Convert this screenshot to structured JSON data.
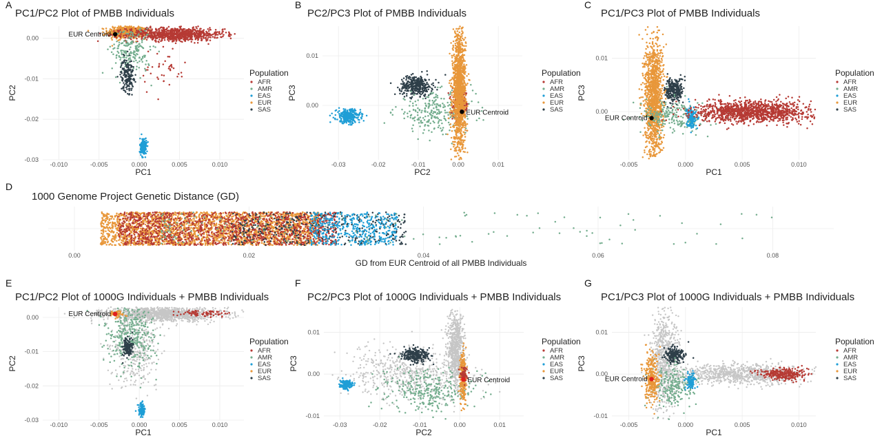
{
  "colors": {
    "AFR": "#b63a34",
    "AMR": "#74ad8e",
    "EAS": "#1f9ed6",
    "EUR": "#e8973a",
    "SAS": "#2e3f49",
    "ref": "#c6c6c6",
    "centroid_black": "#000000",
    "centroid_red": "#e02020",
    "grid": "#ececec"
  },
  "chart_data": [
    {
      "id": "A",
      "letter": "A",
      "type": "scatter",
      "title": "PC1/PC2 Plot of PMBB Individuals",
      "xlabel": "PC1",
      "ylabel": "PC2",
      "xlim": [
        -0.012,
        0.013
      ],
      "ylim": [
        -0.03,
        0.003
      ],
      "xticks": [
        -0.01,
        -0.005,
        0.0,
        0.005,
        0.01
      ],
      "xtick_labels": [
        "-0.010",
        "-0.005",
        "0.000",
        "0.005",
        "0.010"
      ],
      "yticks": [
        0.0,
        -0.01,
        -0.02,
        -0.03
      ],
      "ytick_labels": [
        "0.00",
        "-0.01",
        "-0.02",
        "-0.03"
      ],
      "legend_title": "Population",
      "legend": [
        "AFR",
        "AMR",
        "EAS",
        "EUR",
        "SAS"
      ],
      "legend_placement": "right",
      "centroid": {
        "label": "EUR Centroid",
        "x": -0.003,
        "y": 0.001,
        "color": "centroid_black"
      },
      "series": [
        {
          "group": "EUR",
          "clusters": [
            {
              "cx": -0.0015,
              "cy": 0.0015,
              "sx": 0.0012,
              "sy": 0.0008,
              "n": 500
            }
          ]
        },
        {
          "group": "AFR",
          "clusters": [
            {
              "cx": 0.0045,
              "cy": 0.001,
              "sx": 0.003,
              "sy": 0.0008,
              "n": 900
            },
            {
              "cx": 0.003,
              "cy": -0.008,
              "sx": 0.0015,
              "sy": 0.003,
              "n": 40
            }
          ]
        },
        {
          "group": "AMR",
          "clusters": [
            {
              "cx": -0.001,
              "cy": -0.003,
              "sx": 0.0012,
              "sy": 0.003,
              "n": 200
            }
          ]
        },
        {
          "group": "SAS",
          "clusters": [
            {
              "cx": -0.0015,
              "cy": -0.009,
              "sx": 0.0004,
              "sy": 0.002,
              "n": 180
            }
          ]
        },
        {
          "group": "EAS",
          "clusters": [
            {
              "cx": 0.0005,
              "cy": -0.027,
              "sx": 0.0002,
              "sy": 0.0012,
              "n": 180
            }
          ]
        }
      ]
    },
    {
      "id": "B",
      "letter": "B",
      "type": "scatter",
      "title": "PC2/PC3 Plot of PMBB Individuals",
      "xlabel": "PC2",
      "ylabel": "PC3",
      "xlim": [
        -0.034,
        0.016
      ],
      "ylim": [
        -0.011,
        0.016
      ],
      "xticks": [
        -0.03,
        -0.02,
        -0.01,
        0.0,
        0.01
      ],
      "xtick_labels": [
        "-0.03",
        "-0.02",
        "-0.01",
        "0.00",
        "0.01"
      ],
      "yticks": [
        0.01,
        0.0
      ],
      "ytick_labels": [
        "0.01",
        "0.00"
      ],
      "legend_title": "Population",
      "legend": [
        "AFR",
        "AMR",
        "EAS",
        "EUR",
        "SAS"
      ],
      "legend_placement": "right",
      "centroid": {
        "label": "EUR Centroid",
        "x": 0.0009,
        "y": -0.0013,
        "color": "centroid_black"
      },
      "series": [
        {
          "group": "SAS",
          "clusters": [
            {
              "cx": -0.0105,
              "cy": 0.004,
              "sx": 0.002,
              "sy": 0.001,
              "n": 350
            }
          ]
        },
        {
          "group": "EAS",
          "clusters": [
            {
              "cx": -0.0275,
              "cy": -0.0022,
              "sx": 0.0015,
              "sy": 0.0007,
              "n": 280
            }
          ]
        },
        {
          "group": "AMR",
          "clusters": [
            {
              "cx": -0.006,
              "cy": -0.0015,
              "sx": 0.005,
              "sy": 0.002,
              "n": 250
            }
          ]
        },
        {
          "group": "AFR",
          "clusters": [
            {
              "cx": 0.0005,
              "cy": 0.0,
              "sx": 0.001,
              "sy": 0.0015,
              "n": 220
            }
          ]
        },
        {
          "group": "EUR",
          "clusters": [
            {
              "cx": 0.0002,
              "cy": 0.003,
              "sx": 0.0008,
              "sy": 0.006,
              "n": 1400
            }
          ]
        }
      ]
    },
    {
      "id": "C",
      "letter": "C",
      "type": "scatter",
      "title": "PC1/PC3 Plot of PMBB Individuals",
      "xlabel": "PC1",
      "ylabel": "PC3",
      "xlim": [
        -0.0065,
        0.0115
      ],
      "ylim": [
        -0.009,
        0.016
      ],
      "xticks": [
        -0.005,
        0.0,
        0.005,
        0.01
      ],
      "xtick_labels": [
        "-0.005",
        "0.000",
        "0.005",
        "0.010"
      ],
      "yticks": [
        0.01,
        0.0
      ],
      "ytick_labels": [
        "0.01",
        "0.00"
      ],
      "legend_title": "Population",
      "legend": [
        "AFR",
        "AMR",
        "EAS",
        "EUR",
        "SAS"
      ],
      "legend_placement": "right",
      "centroid": {
        "label": "EUR Centroid",
        "x": -0.003,
        "y": -0.0012,
        "color": "centroid_black"
      },
      "series": [
        {
          "group": "EUR",
          "clusters": [
            {
              "cx": -0.0028,
              "cy": 0.0025,
              "sx": 0.0004,
              "sy": 0.0055,
              "n": 1300
            }
          ]
        },
        {
          "group": "SAS",
          "clusters": [
            {
              "cx": -0.001,
              "cy": 0.004,
              "sx": 0.0004,
              "sy": 0.0012,
              "n": 260
            }
          ]
        },
        {
          "group": "AMR",
          "clusters": [
            {
              "cx": -0.001,
              "cy": -0.001,
              "sx": 0.0015,
              "sy": 0.0015,
              "n": 220
            }
          ]
        },
        {
          "group": "EAS",
          "clusters": [
            {
              "cx": 0.0005,
              "cy": -0.001,
              "sx": 0.0002,
              "sy": 0.001,
              "n": 150
            }
          ]
        },
        {
          "group": "AFR",
          "clusters": [
            {
              "cx": 0.006,
              "cy": 0.0,
              "sx": 0.0025,
              "sy": 0.001,
              "n": 1200
            }
          ]
        }
      ]
    },
    {
      "id": "D",
      "letter": "D",
      "type": "scatter",
      "title": "1000 Genome Project Genetic Distance (GD)",
      "xlabel": "GD from EUR Centroid of all PMBB Individuals",
      "ylabel": "",
      "xlim": [
        -0.003,
        0.087
      ],
      "xticks": [
        0.0,
        0.02,
        0.04,
        0.06,
        0.08
      ],
      "xtick_labels": [
        "0.00",
        "0.02",
        "0.04",
        "0.06",
        "0.08"
      ],
      "legend": [],
      "series": [
        {
          "group": "EUR",
          "x_range": [
            0.003,
            0.028
          ],
          "n": 2600
        },
        {
          "group": "AFR",
          "x_range": [
            0.005,
            0.03
          ],
          "n": 1300
        },
        {
          "group": "SAS",
          "x_range": [
            0.018,
            0.038
          ],
          "n": 350
        },
        {
          "group": "EAS",
          "x_range": [
            0.027,
            0.037
          ],
          "n": 450
        },
        {
          "group": "AMR",
          "x_range": [
            0.01,
            0.08
          ],
          "n": 140
        }
      ]
    },
    {
      "id": "E",
      "letter": "E",
      "type": "scatter",
      "title": "PC1/PC2 Plot of 1000G Individuals + PMBB Individuals",
      "xlabel": "PC1",
      "ylabel": "PC2",
      "xlim": [
        -0.012,
        0.013
      ],
      "ylim": [
        -0.03,
        0.003
      ],
      "xticks": [
        -0.01,
        -0.005,
        0.0,
        0.005,
        0.01
      ],
      "xtick_labels": [
        "-0.010",
        "-0.005",
        "0.000",
        "0.005",
        "0.010"
      ],
      "yticks": [
        0.0,
        -0.01,
        -0.02,
        -0.03
      ],
      "ytick_labels": [
        "0.00",
        "-0.01",
        "-0.02",
        "-0.03"
      ],
      "legend_title": "Population",
      "legend": [
        "AFR",
        "AMR",
        "EAS",
        "EUR",
        "SAS"
      ],
      "legend_placement": "right",
      "centroid": {
        "label": "EUR Centroid",
        "x": -0.003,
        "y": 0.001,
        "color": "centroid_red"
      },
      "series": [
        {
          "group": "ref",
          "clusters": [
            {
              "cx": 0.003,
              "cy": 0.001,
              "sx": 0.0035,
              "sy": 0.001,
              "n": 1200
            },
            {
              "cx": -0.0005,
              "cy": -0.008,
              "sx": 0.0015,
              "sy": 0.006,
              "n": 400
            }
          ]
        },
        {
          "group": "AFR",
          "clusters": [
            {
              "cx": 0.008,
              "cy": 0.0012,
              "sx": 0.0015,
              "sy": 0.0005,
              "n": 80
            }
          ]
        },
        {
          "group": "AMR",
          "clusters": [
            {
              "cx": -0.001,
              "cy": -0.005,
              "sx": 0.0015,
              "sy": 0.005,
              "n": 350
            }
          ]
        },
        {
          "group": "SAS",
          "clusters": [
            {
              "cx": -0.0015,
              "cy": -0.009,
              "sx": 0.0003,
              "sy": 0.0015,
              "n": 150
            }
          ]
        },
        {
          "group": "EAS",
          "clusters": [
            {
              "cx": 0.0003,
              "cy": -0.027,
              "sx": 0.0002,
              "sy": 0.001,
              "n": 120
            }
          ]
        },
        {
          "group": "EUR",
          "clusters": [
            {
              "cx": -0.0028,
              "cy": 0.001,
              "sx": 0.0004,
              "sy": 0.0004,
              "n": 80
            }
          ]
        }
      ]
    },
    {
      "id": "F",
      "letter": "F",
      "type": "scatter",
      "title": "PC2/PC3 Plot of 1000G Individuals + PMBB Individuals",
      "xlabel": "PC2",
      "ylabel": "PC3",
      "xlim": [
        -0.034,
        0.016
      ],
      "ylim": [
        -0.011,
        0.016
      ],
      "xticks": [
        -0.03,
        -0.02,
        -0.01,
        0.0,
        0.01
      ],
      "xtick_labels": [
        "-0.03",
        "-0.02",
        "-0.01",
        "0.00",
        "0.01"
      ],
      "yticks": [
        0.01,
        0.0,
        -0.01
      ],
      "ytick_labels": [
        "0.01",
        "0.00",
        "-0.01"
      ],
      "legend_title": "Population",
      "legend": [
        "AFR",
        "AMR",
        "EAS",
        "EUR",
        "SAS"
      ],
      "legend_placement": "right",
      "centroid": {
        "label": "EUR Centroid",
        "x": 0.0009,
        "y": -0.0013,
        "color": "centroid_red"
      },
      "series": [
        {
          "group": "ref",
          "clusters": [
            {
              "cx": -0.001,
              "cy": 0.006,
              "sx": 0.001,
              "sy": 0.0045,
              "n": 700
            },
            {
              "cx": -0.012,
              "cy": 0.0,
              "sx": 0.008,
              "sy": 0.003,
              "n": 600
            }
          ]
        },
        {
          "group": "SAS",
          "clusters": [
            {
              "cx": -0.011,
              "cy": 0.0045,
              "sx": 0.0018,
              "sy": 0.0008,
              "n": 250
            }
          ]
        },
        {
          "group": "EAS",
          "clusters": [
            {
              "cx": -0.0285,
              "cy": -0.0025,
              "sx": 0.0008,
              "sy": 0.0005,
              "n": 150
            }
          ]
        },
        {
          "group": "AMR",
          "clusters": [
            {
              "cx": -0.008,
              "cy": -0.004,
              "sx": 0.0055,
              "sy": 0.0025,
              "n": 300
            }
          ]
        },
        {
          "group": "EUR",
          "clusters": [
            {
              "cx": 0.0008,
              "cy": -0.001,
              "sx": 0.0004,
              "sy": 0.003,
              "n": 250
            }
          ]
        },
        {
          "group": "AFR",
          "clusters": [
            {
              "cx": 0.001,
              "cy": 0.0,
              "sx": 0.0005,
              "sy": 0.001,
              "n": 60
            }
          ]
        }
      ]
    },
    {
      "id": "G",
      "letter": "G",
      "type": "scatter",
      "title": "PC1/PC3 Plot of 1000G Individuals + PMBB Individuals",
      "xlabel": "PC1",
      "ylabel": "PC3",
      "xlim": [
        -0.0065,
        0.0115
      ],
      "ylim": [
        -0.011,
        0.016
      ],
      "xticks": [
        -0.005,
        0.0,
        0.005,
        0.01
      ],
      "xtick_labels": [
        "-0.005",
        "0.000",
        "0.005",
        "0.010"
      ],
      "yticks": [
        0.01,
        0.0,
        -0.01
      ],
      "ytick_labels": [
        "0.01",
        "0.00",
        "-0.01"
      ],
      "legend_title": "Population",
      "legend": [
        "AFR",
        "AMR",
        "EAS",
        "EUR",
        "SAS"
      ],
      "legend_placement": "right",
      "centroid": {
        "label": "EUR Centroid",
        "x": -0.003,
        "y": -0.0012,
        "color": "centroid_red"
      },
      "series": [
        {
          "group": "ref",
          "clusters": [
            {
              "cx": -0.0018,
              "cy": 0.004,
              "sx": 0.0006,
              "sy": 0.006,
              "n": 700
            },
            {
              "cx": 0.0045,
              "cy": 0.0,
              "sx": 0.003,
              "sy": 0.0012,
              "n": 900
            }
          ]
        },
        {
          "group": "SAS",
          "clusters": [
            {
              "cx": -0.001,
              "cy": 0.0045,
              "sx": 0.0004,
              "sy": 0.001,
              "n": 200
            }
          ]
        },
        {
          "group": "AMR",
          "clusters": [
            {
              "cx": -0.0012,
              "cy": -0.003,
              "sx": 0.001,
              "sy": 0.0025,
              "n": 220
            }
          ]
        },
        {
          "group": "EAS",
          "clusters": [
            {
              "cx": 0.0005,
              "cy": -0.0015,
              "sx": 0.0002,
              "sy": 0.001,
              "n": 100
            }
          ]
        },
        {
          "group": "AFR",
          "clusters": [
            {
              "cx": 0.0085,
              "cy": 0.0,
              "sx": 0.001,
              "sy": 0.0007,
              "n": 300
            }
          ]
        },
        {
          "group": "EUR",
          "clusters": [
            {
              "cx": -0.003,
              "cy": -0.001,
              "sx": 0.0003,
              "sy": 0.003,
              "n": 300
            }
          ]
        }
      ]
    }
  ]
}
